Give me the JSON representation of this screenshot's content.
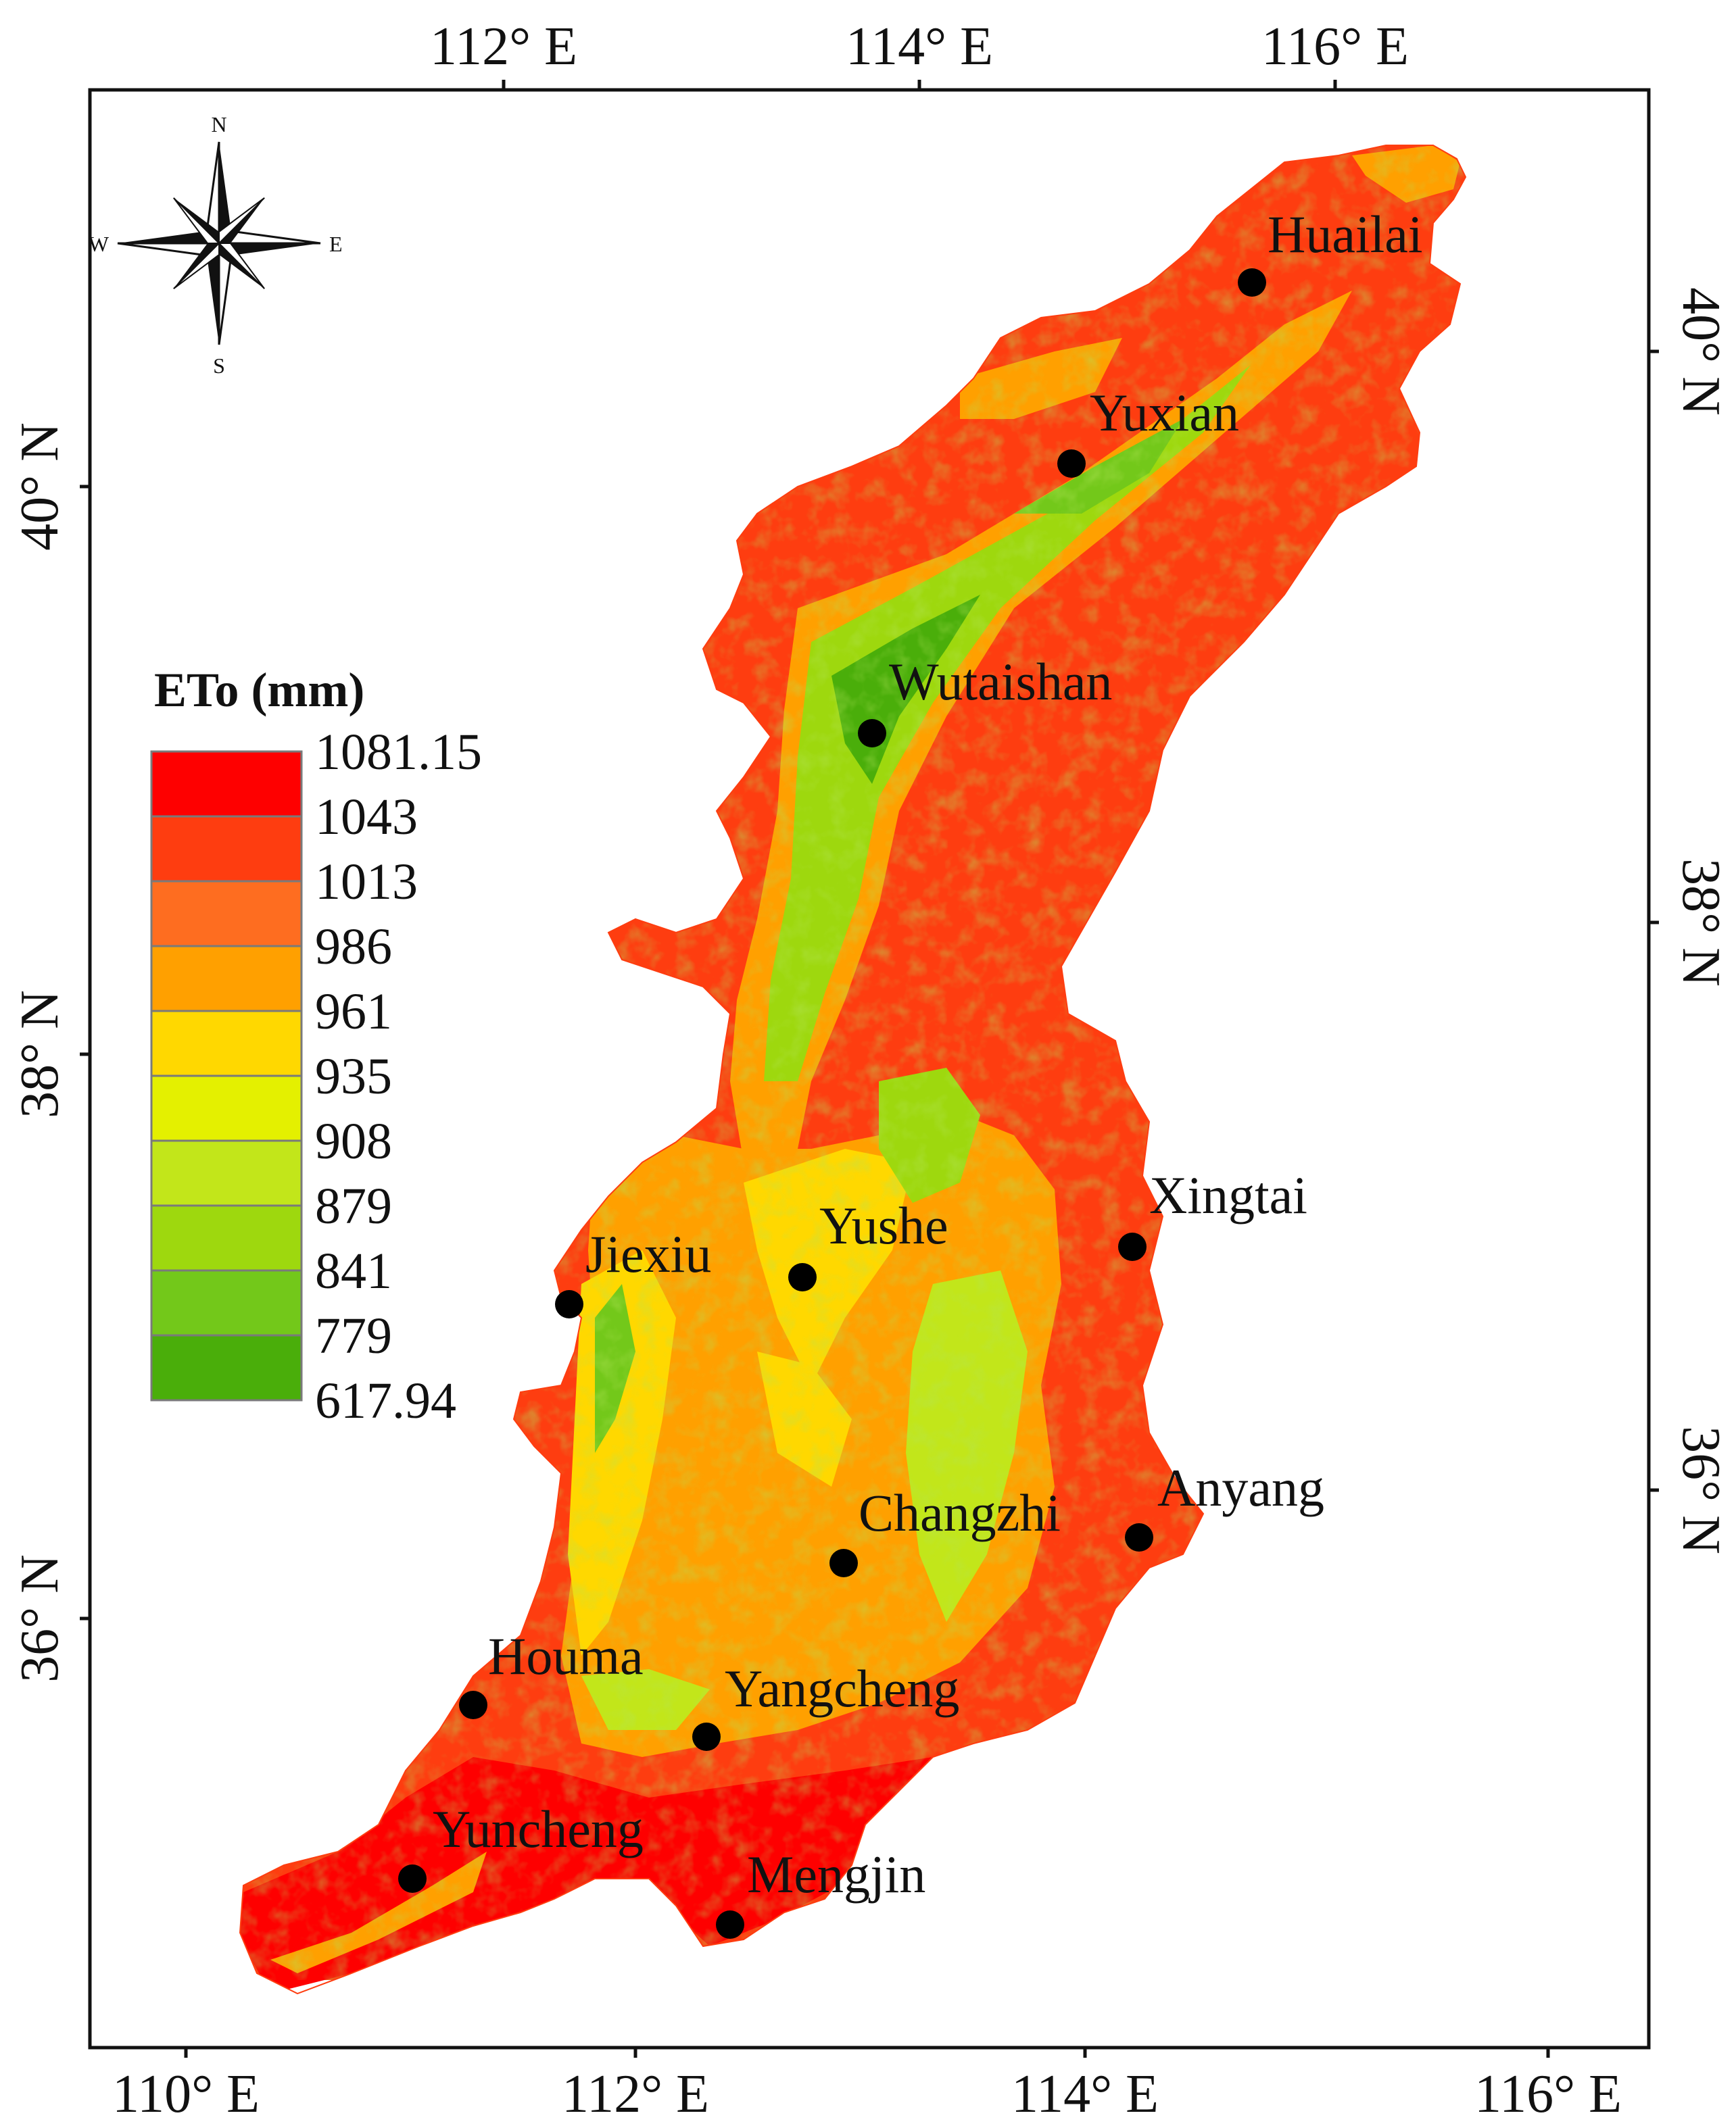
{
  "map": {
    "top_longitudes": [
      "112° E",
      "114° E",
      "116° E"
    ],
    "bottom_longitudes": [
      "110° E",
      "112° E",
      "114° E",
      "116° E"
    ],
    "left_latitudes": [
      "40° N",
      "38° N",
      "36° N"
    ],
    "right_latitudes": [
      "40° N",
      "38° N",
      "36° N"
    ]
  },
  "compass": {
    "north": "N",
    "south": "S",
    "east": "E",
    "west": "W"
  },
  "legend": {
    "title": "ETo (mm)",
    "labels": [
      "1081.15",
      "1043",
      "1013",
      "986",
      "961",
      "935",
      "908",
      "879",
      "841",
      "779",
      "617.94"
    ],
    "colors": [
      "#fe0000",
      "#fe3d10",
      "#fe6d20",
      "#ffa000",
      "#ffd800",
      "#e4f000",
      "#c2e61a",
      "#9ed80e",
      "#73c81a",
      "#4aae0a"
    ]
  },
  "stations": [
    {
      "name": "Huailai"
    },
    {
      "name": "Yuxian"
    },
    {
      "name": "Wutaishan"
    },
    {
      "name": "Xingtai"
    },
    {
      "name": "Jiexiu"
    },
    {
      "name": "Yushe"
    },
    {
      "name": "Anyang"
    },
    {
      "name": "Changzhi"
    },
    {
      "name": "Houma"
    },
    {
      "name": "Yangcheng"
    },
    {
      "name": "Yuncheng"
    },
    {
      "name": "Mengjin"
    }
  ]
}
